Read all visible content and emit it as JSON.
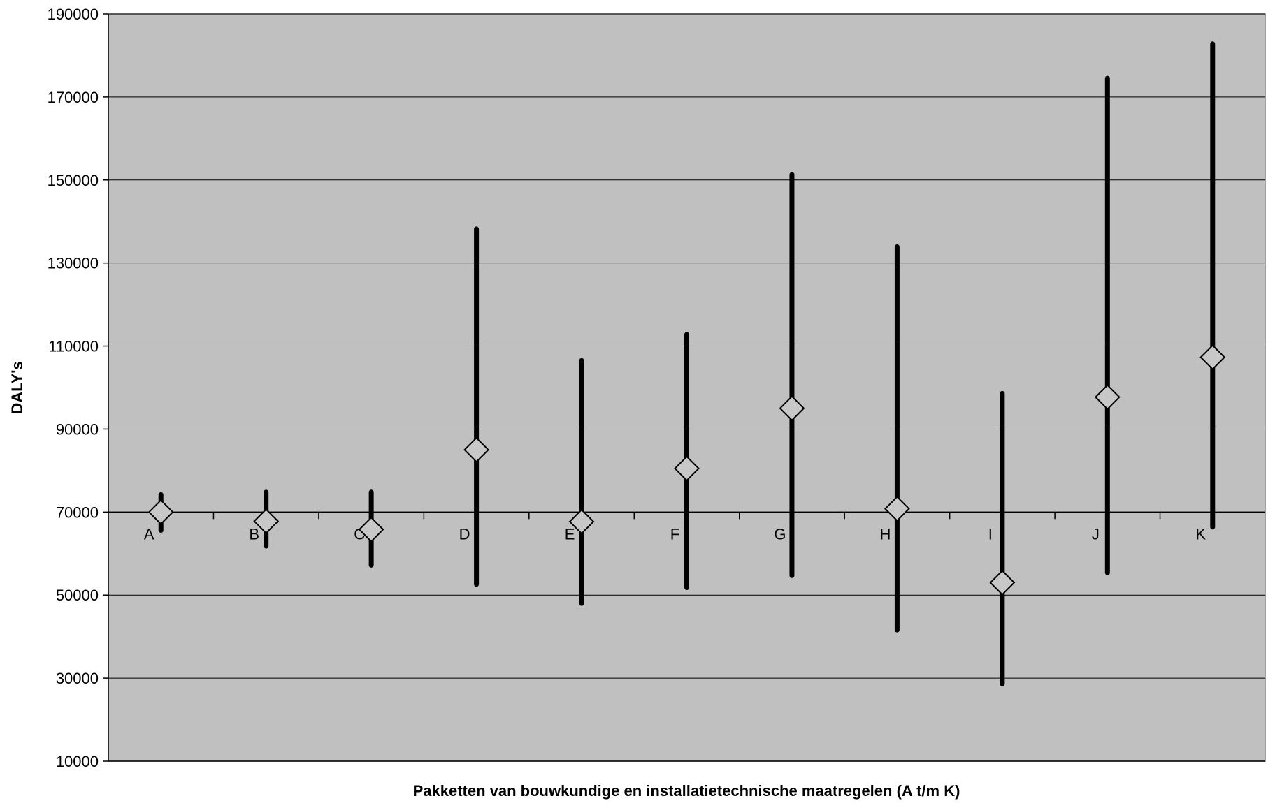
{
  "chart_data": {
    "type": "error-bar",
    "title": "",
    "xlabel": "Pakketten van bouwkundige en installatietechnische maatregelen (A t/m K)",
    "ylabel": "DALY's",
    "ylim": [
      10000,
      190000
    ],
    "yticks": [
      10000,
      30000,
      50000,
      70000,
      90000,
      110000,
      130000,
      150000,
      170000,
      190000
    ],
    "ytick_labels": [
      "10000",
      "30000",
      "50000",
      "70000",
      "90000",
      "110000",
      "130000",
      "150000",
      "170000",
      "190000"
    ],
    "x_axis_crosses_at": 70000,
    "grid": true,
    "legend": false,
    "categories": [
      "A",
      "B",
      "C",
      "D",
      "E",
      "F",
      "G",
      "H",
      "I",
      "J",
      "K"
    ],
    "series": [
      {
        "stat": "mean",
        "values": [
          70000,
          67800,
          65800,
          85000,
          67700,
          80500,
          95000,
          70800,
          53000,
          97700,
          107300
        ]
      },
      {
        "stat": "max",
        "values": [
          74200,
          74800,
          74800,
          138200,
          106500,
          112800,
          151300,
          133900,
          98600,
          174500,
          182800
        ]
      },
      {
        "stat": "min",
        "values": [
          65600,
          61800,
          57200,
          52600,
          48000,
          51800,
          54700,
          41600,
          28600,
          55400,
          66400
        ]
      }
    ],
    "colors": {
      "plot_background": "#c0c0c0",
      "gridline": "#000000",
      "range_bar": "#000000",
      "marker_fill": "#c8c8c8",
      "marker_stroke": "#000000"
    }
  }
}
